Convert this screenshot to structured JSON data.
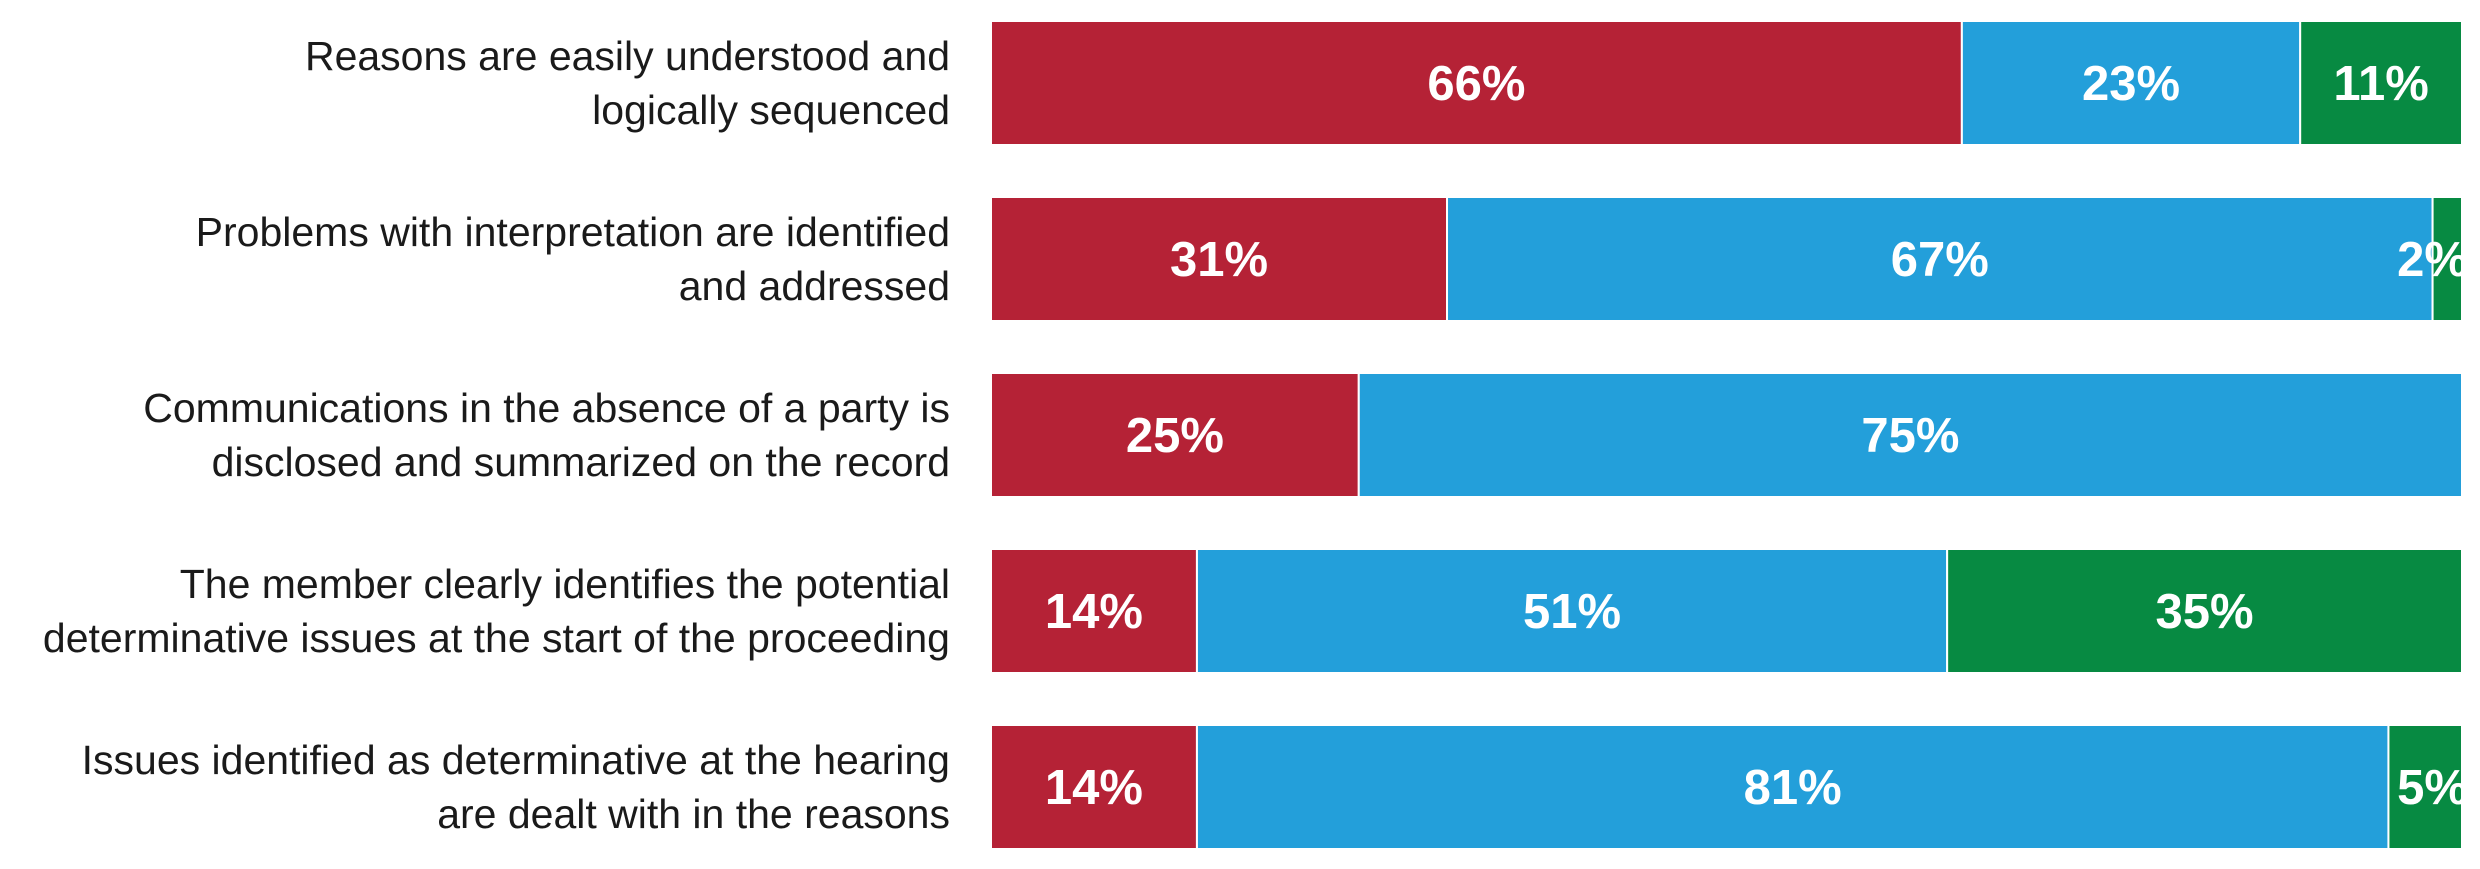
{
  "chart_data": {
    "type": "bar",
    "orientation": "horizontal",
    "stacked": true,
    "title": "",
    "xlabel": "",
    "ylabel": "",
    "xlim": [
      0,
      100
    ],
    "grid": false,
    "categories": [
      [
        "Reasons are easily understood and",
        "logically sequenced"
      ],
      [
        "Problems with interpretation are identified",
        "and addressed"
      ],
      [
        "Communications in the absence of a party is",
        "disclosed and summarized on the record"
      ],
      [
        "The member clearly identifies the potential",
        "determinative issues at the start of the proceeding"
      ],
      [
        "Issues identified as determinative at the hearing",
        "are dealt with in the reasons"
      ]
    ],
    "series": [
      {
        "color": "#b52236",
        "values": [
          66,
          31,
          25,
          14,
          14
        ]
      },
      {
        "color": "#239fda",
        "values": [
          23,
          67,
          75,
          51,
          81
        ]
      },
      {
        "color": "#078a42",
        "values": [
          11,
          2,
          0,
          35,
          5
        ]
      }
    ],
    "data_labels": [
      [
        "66%",
        "31%",
        "25%",
        "14%",
        "14%"
      ],
      [
        "23%",
        "67%",
        "75%",
        "51%",
        "81%"
      ],
      [
        "11%",
        "2%",
        "",
        "35%",
        "5%"
      ]
    ]
  }
}
